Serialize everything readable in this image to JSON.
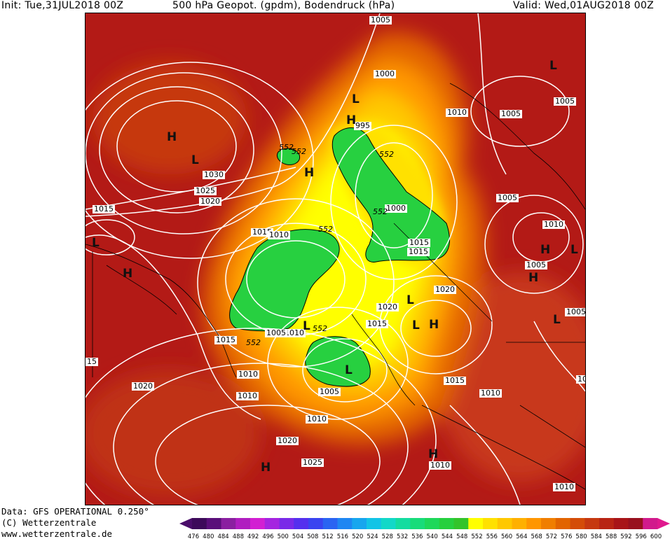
{
  "header": {
    "init": "Init: Tue,31JUL2018 00Z",
    "title": "500 hPa Geopot. (gpdm), Bodendruck (hPa)",
    "valid": "Valid: Wed,01AUG2018 00Z"
  },
  "footer": {
    "data_source": "Data: GFS OPERATIONAL 0.250°",
    "copyright": "(C) Wetterzentrale",
    "url": "www.wetterzentrale.de"
  },
  "colorbar": {
    "ticks": [
      "476",
      "480",
      "484",
      "488",
      "492",
      "496",
      "500",
      "504",
      "508",
      "512",
      "516",
      "520",
      "524",
      "528",
      "532",
      "536",
      "540",
      "544",
      "548",
      "552",
      "556",
      "560",
      "564",
      "568",
      "572",
      "576",
      "580",
      "584",
      "588",
      "592",
      "596",
      "600"
    ],
    "colors": [
      "#3d0a5a",
      "#5a0f7a",
      "#8a1fa0",
      "#b01dc0",
      "#d21fd2",
      "#a524e0",
      "#7a2ae8",
      "#5530ee",
      "#3a44f0",
      "#2a64f2",
      "#1f86f2",
      "#17a6ee",
      "#12c4e6",
      "#12d8c8",
      "#14dca0",
      "#18dc7a",
      "#1ed85a",
      "#26d03e",
      "#33c42a",
      "#ffff00",
      "#ffe100",
      "#ffc800",
      "#ffb000",
      "#ff9600",
      "#f07e00",
      "#e26400",
      "#d44c08",
      "#c63810",
      "#b82414",
      "#a81418",
      "#98101e",
      "#d11a8c"
    ],
    "left_arrow_color": "#4a0d6a",
    "right_arrow_color": "#e0198e"
  },
  "map": {
    "pressure_labels": [
      "1005",
      "1000",
      "1010",
      "1005",
      "1005",
      "995",
      "1030",
      "1025",
      "1020",
      "1015",
      "1015",
      "1010",
      "1000",
      "1005",
      "1015",
      "1010",
      "1020",
      "1005",
      "1020",
      "1015",
      "1010",
      "1005",
      "1010",
      "1015",
      "1010",
      "1010",
      "1005",
      "1015",
      "1020",
      "1015",
      "1010",
      "1020",
      "1025",
      "1010",
      "1010",
      "1015",
      "10",
      "1005",
      "15"
    ],
    "height_labels": [
      "552",
      "552",
      "552",
      "552",
      "552",
      "552",
      "552"
    ],
    "centers": [
      "H",
      "L",
      "L",
      "H",
      "H",
      "H",
      "L",
      "H",
      "L",
      "L",
      "H",
      "L",
      "H",
      "H",
      "L",
      "L",
      "H",
      "L",
      "H",
      "L",
      "L"
    ],
    "colors": {
      "land_border": "#000000",
      "isobar": "#ffffff",
      "low_height": "#22cc33",
      "high_height": "#b31a16"
    }
  }
}
